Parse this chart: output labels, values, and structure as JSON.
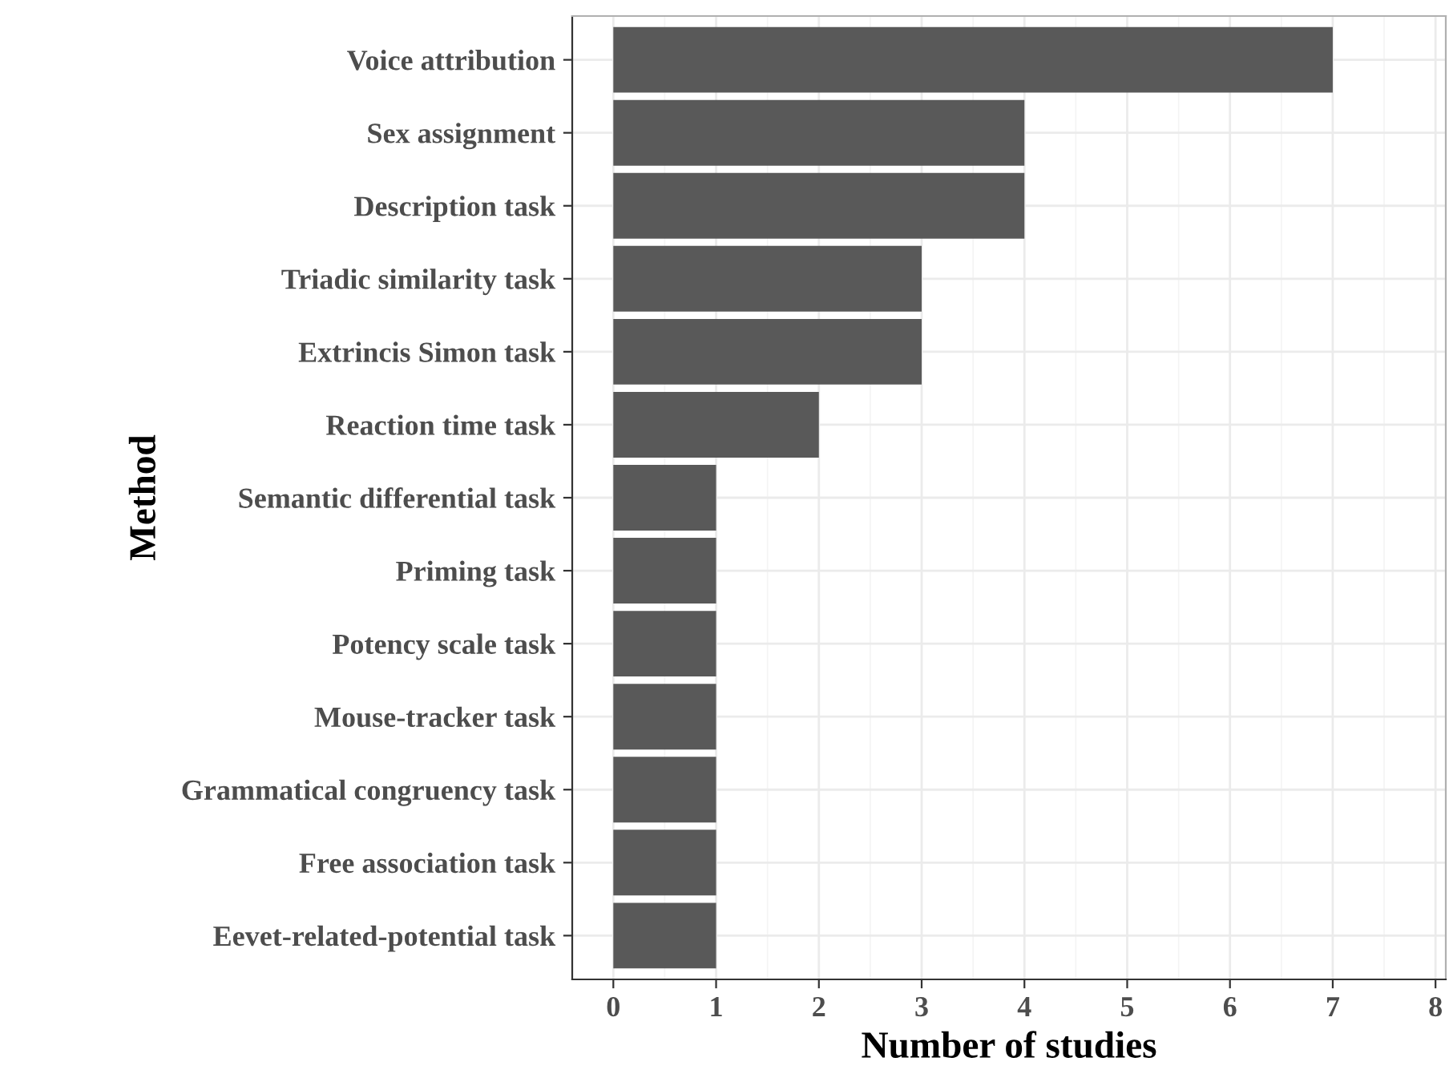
{
  "chart_data": {
    "type": "bar",
    "orientation": "horizontal",
    "xlabel": "Number of studies",
    "ylabel": "Method",
    "categories": [
      "Voice attribution",
      "Sex assignment",
      "Description task",
      "Triadic similarity task",
      "Extrincis Simon task",
      "Reaction time task",
      "Semantic differential task",
      "Priming task",
      "Potency scale task",
      "Mouse-tracker task",
      "Grammatical congruency task",
      "Free association task",
      "Eevet-related-potential task"
    ],
    "values": [
      7,
      4,
      4,
      3,
      3,
      2,
      1,
      1,
      1,
      1,
      1,
      1,
      1
    ],
    "color": "#595959",
    "xlim": [
      -0.4,
      8.1
    ],
    "xticks": [
      0,
      1,
      2,
      3,
      4,
      5,
      6,
      7,
      8
    ],
    "grid": true,
    "legend": false
  }
}
